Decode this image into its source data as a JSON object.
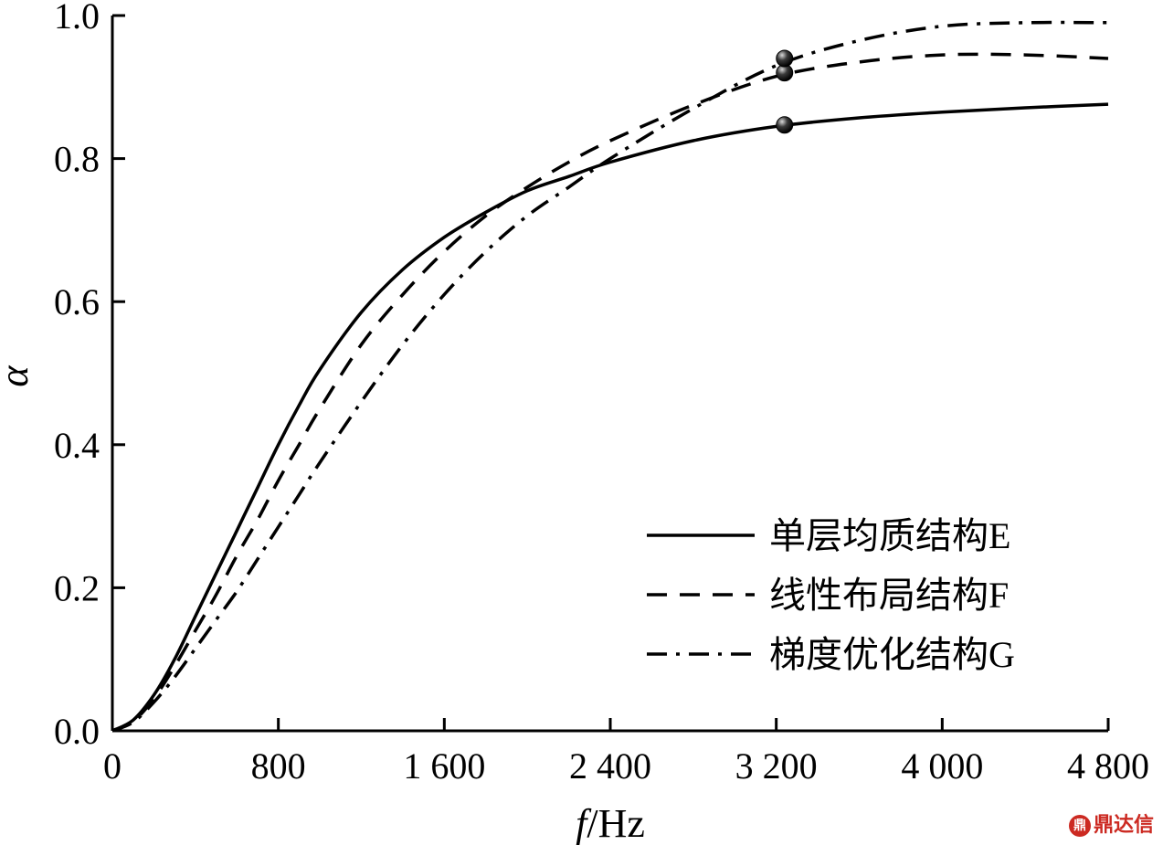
{
  "chart_data": {
    "type": "line",
    "title": "",
    "xlabel_italic": "f",
    "xlabel_rest": "/Hz",
    "ylabel": "α",
    "xlim": [
      0,
      4800
    ],
    "ylim": [
      0,
      1.0
    ],
    "x_ticks": [
      0,
      800,
      1600,
      2400,
      3200,
      4000,
      4800
    ],
    "x_tick_labels": [
      "0",
      "800",
      "1 600",
      "2 400",
      "3 200",
      "4 000",
      "4 800"
    ],
    "y_ticks": [
      0.0,
      0.2,
      0.4,
      0.6,
      0.8,
      1.0
    ],
    "y_tick_labels": [
      "0.0",
      "0.2",
      "0.4",
      "0.6",
      "0.8",
      "1.0"
    ],
    "grid": false,
    "legend_position": "bottom-right",
    "series": [
      {
        "name": "单层均质结构E",
        "style": "solid",
        "x": [
          0,
          100,
          200,
          300,
          400,
          500,
          600,
          700,
          800,
          900,
          1000,
          1200,
          1400,
          1600,
          1800,
          2000,
          2200,
          2400,
          2800,
          3200,
          3600,
          4000,
          4400,
          4800
        ],
        "y": [
          0,
          0.015,
          0.05,
          0.1,
          0.16,
          0.22,
          0.28,
          0.34,
          0.4,
          0.455,
          0.505,
          0.585,
          0.645,
          0.69,
          0.725,
          0.755,
          0.775,
          0.795,
          0.825,
          0.845,
          0.857,
          0.865,
          0.871,
          0.876
        ],
        "markers": [
          {
            "x": 3240,
            "y": 0.847
          }
        ]
      },
      {
        "name": "线性布局结构F",
        "style": "dashed",
        "x": [
          0,
          100,
          200,
          300,
          400,
          500,
          600,
          700,
          800,
          900,
          1000,
          1200,
          1400,
          1600,
          1800,
          2000,
          2200,
          2400,
          2800,
          3200,
          3600,
          4000,
          4400,
          4800
        ],
        "y": [
          0,
          0.013,
          0.045,
          0.09,
          0.14,
          0.19,
          0.245,
          0.295,
          0.35,
          0.4,
          0.45,
          0.54,
          0.61,
          0.67,
          0.72,
          0.76,
          0.795,
          0.825,
          0.875,
          0.915,
          0.935,
          0.945,
          0.945,
          0.94
        ],
        "markers": [
          {
            "x": 3240,
            "y": 0.92
          }
        ]
      },
      {
        "name": "梯度优化结构G",
        "style": "dashdot",
        "x": [
          0,
          100,
          200,
          300,
          400,
          500,
          600,
          700,
          800,
          900,
          1000,
          1200,
          1400,
          1600,
          1800,
          2000,
          2200,
          2400,
          2800,
          3200,
          3600,
          4000,
          4400,
          4800
        ],
        "y": [
          0,
          0.012,
          0.04,
          0.075,
          0.115,
          0.155,
          0.195,
          0.24,
          0.285,
          0.33,
          0.375,
          0.46,
          0.54,
          0.61,
          0.67,
          0.72,
          0.76,
          0.8,
          0.87,
          0.93,
          0.965,
          0.985,
          0.99,
          0.99
        ],
        "markers": [
          {
            "x": 3240,
            "y": 0.94
          }
        ]
      }
    ]
  },
  "watermark": {
    "badge": "鼎",
    "text": "鼎达信"
  }
}
